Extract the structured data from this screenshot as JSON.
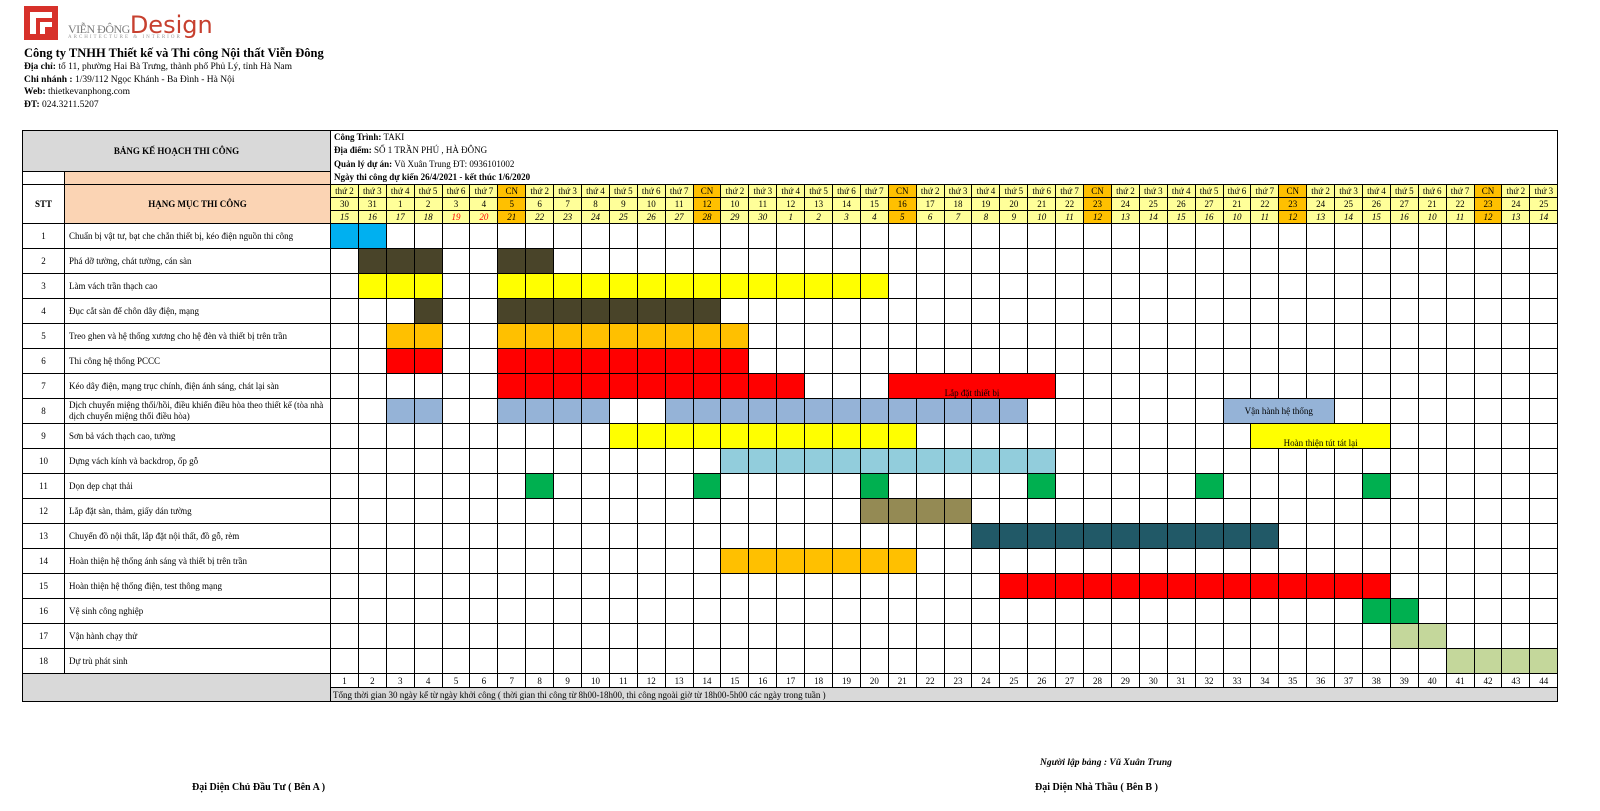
{
  "logo": {
    "brand": "VIỄN ĐÔNG",
    "brand2": "Design",
    "tagline": "ARCHITECTURE & INTERIOR"
  },
  "company": {
    "name": "Công ty TNHH Thiết kế và Thi công Nội thất Viễn Đông",
    "address_label": "Địa chỉ:",
    "address": " tổ 11, phường Hai Bà Trưng, thành phố Phủ Lý, tỉnh Hà Nam",
    "branch_label": "Chi nhánh :",
    "branch": " 1/39/112 Ngọc Khánh - Ba Đình - Hà Nội",
    "web_label": "Web:",
    "web": " thietkevanphong.com",
    "phone_label": "ĐT:",
    "phone": " 024.3211.5207"
  },
  "table": {
    "title": "BẢNG KẾ HOẠCH  THI CÔNG",
    "project_label": "Công Trình:",
    "project": " TAKI",
    "location_label": "Địa điểm:",
    "location": " SỐ 1 TRẦN PHÚ , HÀ ĐÔNG",
    "manager_label": "Quản lý dự án:",
    "manager": "  Vũ Xuân Trung     ĐT:  0936101002",
    "schedule": "Ngày thi công dự kiến 26/4/2021 - kết thúc 1/6/2020",
    "stt_header": "STT",
    "category_header": "HẠNG MỤC THI CÔNG",
    "footer_note": "Tổng thời gian 30 ngày kể từ ngày khởi công ( thời gian thi công từ 8h00-18h00, thi công ngoài giờ từ 18h00-5h00 các ngày trong tuần )"
  },
  "days": {
    "weekdays": [
      "thứ 2",
      "thứ 3",
      "thứ 4",
      "thứ 5",
      "thứ 6",
      "thứ 7",
      "CN",
      "thứ 2",
      "thứ 3",
      "thứ 4",
      "thứ 5",
      "thứ 6",
      "thứ 7",
      "CN",
      "thứ 2",
      "thứ 3",
      "thứ 4",
      "thứ 5",
      "thứ 6",
      "thứ 7",
      "CN",
      "thứ 2",
      "thứ 3",
      "thứ 4",
      "thứ 5",
      "thứ 6",
      "thứ 7",
      "CN",
      "thứ 2",
      "thứ 3",
      "thứ 4",
      "thứ 5",
      "thứ 6",
      "thứ 7",
      "CN",
      "thứ 2",
      "thứ 3",
      "thứ 4",
      "thứ 5",
      "thứ 6",
      "thứ 7",
      "CN",
      "thứ 2",
      "thứ 3"
    ],
    "solar": [
      "30",
      "31",
      "1",
      "2",
      "3",
      "4",
      "5",
      "6",
      "7",
      "8",
      "9",
      "10",
      "11",
      "12",
      "10",
      "11",
      "12",
      "13",
      "14",
      "15",
      "16",
      "17",
      "18",
      "19",
      "20",
      "21",
      "22",
      "23",
      "24",
      "25",
      "26",
      "27",
      "21",
      "22",
      "23",
      "24",
      "25",
      "26",
      "27",
      "21",
      "22",
      "23",
      "24",
      "25"
    ],
    "lunar": [
      "15",
      "16",
      "17",
      "18",
      "19",
      "20",
      "21",
      "22",
      "23",
      "24",
      "25",
      "26",
      "27",
      "28",
      "29",
      "30",
      "1",
      "2",
      "3",
      "4",
      "5",
      "6",
      "7",
      "8",
      "9",
      "10",
      "11",
      "12",
      "13",
      "14",
      "15",
      "16",
      "10",
      "11",
      "12",
      "13",
      "14",
      "15",
      "16",
      "10",
      "11",
      "12",
      "13",
      "14"
    ],
    "index": [
      "1",
      "2",
      "3",
      "4",
      "5",
      "6",
      "7",
      "8",
      "9",
      "10",
      "11",
      "12",
      "13",
      "14",
      "15",
      "16",
      "17",
      "18",
      "19",
      "20",
      "21",
      "22",
      "23",
      "24",
      "25",
      "26",
      "27",
      "28",
      "29",
      "30",
      "31",
      "32",
      "33",
      "34",
      "35",
      "36",
      "37",
      "38",
      "39",
      "40",
      "41",
      "42",
      "43",
      "44"
    ]
  },
  "tasks": [
    {
      "stt": "1",
      "name": "Chuẩn bị vật tư, bạt che chắn thiết bị, kéo điện nguồn thi công",
      "color": "#00b0f0",
      "cells": [
        1,
        2
      ],
      "label": ""
    },
    {
      "stt": "2",
      "name": "Phá dỡ tường, chát tường, cán sàn",
      "color": "#494429",
      "cells": [
        2,
        3,
        4,
        7,
        8
      ],
      "label": ""
    },
    {
      "stt": "3",
      "name": "Làm vách trần thạch cao",
      "color": "#ffff00",
      "cells": [
        2,
        3,
        4,
        7,
        8,
        9,
        10,
        11,
        12,
        13,
        14,
        15,
        16,
        17,
        18,
        19,
        20
      ],
      "label": ""
    },
    {
      "stt": "4",
      "name": "Đục cắt sàn để chôn dây điện, mạng",
      "color": "#494429",
      "cells": [
        4,
        7,
        8,
        9,
        10,
        11,
        12,
        13,
        14
      ],
      "label": ""
    },
    {
      "stt": "5",
      "name": "Treo ghen và hệ thống xương cho hệ đèn và thiết bị trên trần",
      "color": "#ffc000",
      "cells": [
        3,
        4,
        7,
        8,
        9,
        10,
        11,
        12,
        13,
        14,
        15
      ],
      "label": ""
    },
    {
      "stt": "6",
      "name": "Thi công hệ thống PCCC",
      "color": "#ff0000",
      "cells": [
        3,
        4,
        7,
        8,
        9,
        10,
        11,
        12,
        13,
        14,
        15
      ],
      "label": ""
    },
    {
      "stt": "7",
      "name": "Kéo dây điện, mạng trục chính, điện ánh sáng, chát lại sàn",
      "color": "#ff0000",
      "cells": [
        7,
        8,
        9,
        10,
        11,
        12,
        13,
        14,
        15,
        16,
        17,
        21,
        22,
        23,
        24,
        25,
        26
      ],
      "label": "Lắp đặt thiết bị",
      "labelStart": 21,
      "labelSpan": 6
    },
    {
      "stt": "8",
      "name": "Dịch chuyển miệng thổi/hồi, điều khiển điều hòa theo thiết kế (tòa nhà dịch chuyển miệng thổi điều hòa)",
      "color": "#95b3d7",
      "cells": [
        3,
        4,
        7,
        8,
        9,
        10,
        13,
        14,
        15,
        16,
        17,
        18,
        19,
        20,
        21,
        22,
        23,
        24,
        25,
        33,
        34,
        35,
        36
      ],
      "label": "Vận hành hệ thống",
      "labelStart": 33,
      "labelSpan": 4
    },
    {
      "stt": "9",
      "name": "Sơn bả vách thạch cao, tường",
      "color": "#ffff00",
      "cells": [
        11,
        12,
        13,
        14,
        15,
        16,
        17,
        18,
        19,
        20,
        21,
        34,
        35,
        36,
        37,
        38
      ],
      "label": "Hoàn thiện tút tát lại",
      "labelStart": 34,
      "labelSpan": 5
    },
    {
      "stt": "10",
      "name": "Dựng vách kính và backdrop, ốp gỗ",
      "color": "#92cddc",
      "cells": [
        15,
        16,
        17,
        18,
        19,
        20,
        21,
        22,
        23,
        24,
        25,
        26
      ],
      "label": ""
    },
    {
      "stt": "11",
      "name": "Dọn dẹp chạt thải",
      "color": "#00b050",
      "cells": [
        8,
        14,
        20,
        26,
        32,
        38
      ],
      "label": ""
    },
    {
      "stt": "12",
      "name": "Lắp đặt sàn, thảm, giấy dán tường",
      "color": "#948a54",
      "cells": [
        20,
        21,
        22,
        23
      ],
      "label": ""
    },
    {
      "stt": "13",
      "name": "Chuyển đồ nội thất, lắp đặt nội thất, đồ gỗ, rèm",
      "color": "#215967",
      "cells": [
        24,
        25,
        26,
        27,
        28,
        29,
        30,
        31,
        32,
        33,
        34
      ],
      "label": ""
    },
    {
      "stt": "14",
      "name": "Hoàn thiện hệ thống ánh sáng và thiết bị trên trần",
      "color": "#ffc000",
      "cells": [
        15,
        16,
        17,
        18,
        19,
        20,
        21
      ],
      "label": ""
    },
    {
      "stt": "15",
      "name": "Hoàn thiện hệ thống điện, test thông mạng",
      "color": "#ff0000",
      "cells": [
        25,
        26,
        27,
        28,
        29,
        30,
        31,
        32,
        33,
        34,
        35,
        36,
        37,
        38
      ],
      "label": ""
    },
    {
      "stt": "16",
      "name": "Vệ sinh công nghiệp",
      "color": "#00b050",
      "cells": [
        38,
        39
      ],
      "label": ""
    },
    {
      "stt": "17",
      "name": "Vận hành chạy thử",
      "color": "#c4d79b",
      "cells": [
        39,
        40
      ],
      "label": ""
    },
    {
      "stt": "18",
      "name": "Dự trù phát sinh",
      "color": "#c4d79b",
      "cells": [
        41,
        42,
        43,
        44
      ],
      "label": ""
    }
  ],
  "signatures": {
    "prepared_by": "Người lập bảng : Vũ Xuân Trung",
    "party_a": "Đại Diện Chủ Đầu Tư ( Bên A )",
    "party_b": "Đại Diện Nhà Thầu ( Bên B )"
  },
  "colors": {
    "weekend": "#ffc000",
    "date_bg": "#ffff99",
    "header_peach": "#fbd4b4",
    "grey": "#d9d9d9",
    "red_text": "#ff0000"
  }
}
